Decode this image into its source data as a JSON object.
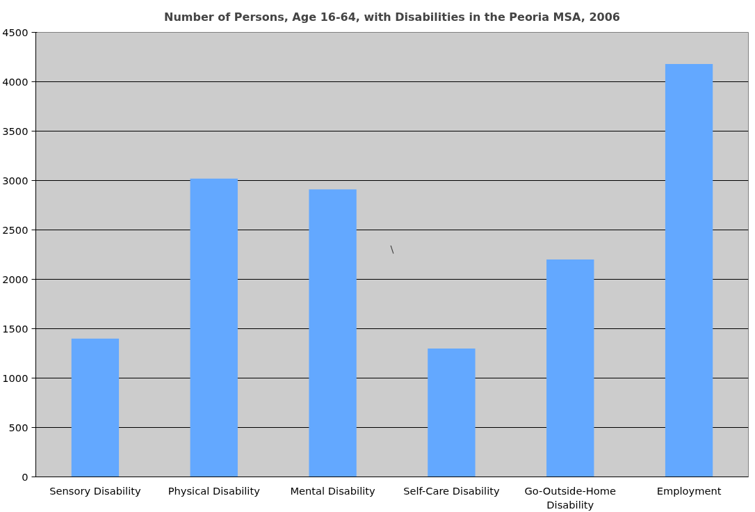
{
  "chart_data": {
    "type": "bar",
    "title": "Number of Persons, Age 16-64, with Disabilities in the Peoria MSA, 2006",
    "categories": [
      "Sensory Disability",
      "Physical Disability",
      "Mental Disability",
      "Self-Care Disability",
      "Go-Outside-Home Disability",
      "Employment"
    ],
    "values": [
      1400,
      3020,
      2910,
      1300,
      2200,
      4180
    ],
    "color": "#63a8ff",
    "ylim": [
      0,
      4500
    ],
    "yticks": [
      0,
      500,
      1000,
      1500,
      2000,
      2500,
      3000,
      3500,
      4000,
      4500
    ],
    "grid": "y",
    "annotations": [
      "\\"
    ]
  }
}
